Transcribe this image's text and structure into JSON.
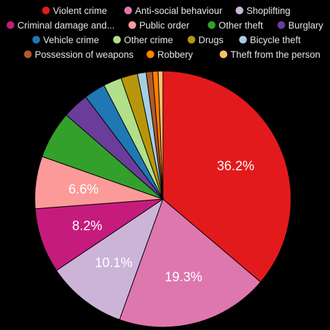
{
  "chart_data": {
    "type": "pie",
    "title": "",
    "legend_position": "top",
    "slices": [
      {
        "label": "Violent crime",
        "value": 36.2,
        "color": "#e31a1c",
        "data_label": "36.2%"
      },
      {
        "label": "Anti-social behaviour",
        "value": 19.3,
        "color": "#de77ae",
        "data_label": "19.3%"
      },
      {
        "label": "Shoplifting",
        "value": 10.1,
        "color": "#ccb4d9",
        "data_label": "10.1%"
      },
      {
        "label": "Criminal damage and...",
        "value": 8.2,
        "color": "#c51b7d",
        "data_label": "8.2%"
      },
      {
        "label": "Public order",
        "value": 6.6,
        "color": "#fb9a99",
        "data_label": "6.6%"
      },
      {
        "label": "Other theft",
        "value": 6.0,
        "color": "#33a02c",
        "data_label": ""
      },
      {
        "label": "Burglary",
        "value": 3.3,
        "color": "#6a3d9a",
        "data_label": ""
      },
      {
        "label": "Vehicle crime",
        "value": 2.7,
        "color": "#1f78b4",
        "data_label": ""
      },
      {
        "label": "Other crime",
        "value": 2.3,
        "color": "#b2df8a",
        "data_label": ""
      },
      {
        "label": "Drugs",
        "value": 2.1,
        "color": "#b8960c",
        "data_label": ""
      },
      {
        "label": "Bicycle theft",
        "value": 1.1,
        "color": "#a6cee3",
        "data_label": ""
      },
      {
        "label": "Possession of weapons",
        "value": 0.8,
        "color": "#b15928",
        "data_label": ""
      },
      {
        "label": "Robbery",
        "value": 0.7,
        "color": "#ff7f00",
        "data_label": ""
      },
      {
        "label": "Theft from the person",
        "value": 0.6,
        "color": "#fdbf6f",
        "data_label": ""
      }
    ]
  }
}
